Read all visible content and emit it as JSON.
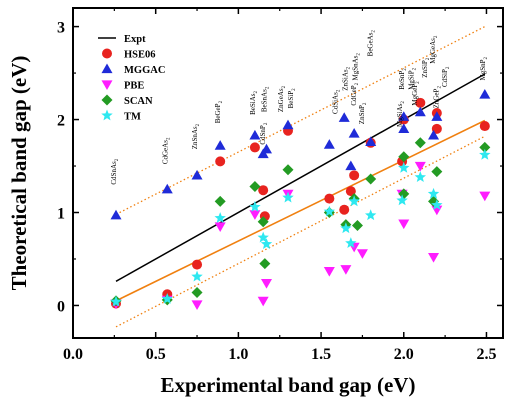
{
  "chart_data": {
    "type": "scatter",
    "title": "",
    "xlabel": "Experimental band gap (eV)",
    "ylabel": "Theoretical band gap (eV)",
    "xlim": [
      0.0,
      2.6
    ],
    "ylim": [
      -0.35,
      3.2
    ],
    "xticks": [
      "0.0",
      "0.5",
      "1.0",
      "1.5",
      "2.0",
      "2.5"
    ],
    "yticks": [
      "0",
      "1",
      "2",
      "3"
    ],
    "legend_position": "top-left",
    "grid": false,
    "series": [
      {
        "name": "Expt",
        "marker": "line",
        "color": "#000000",
        "x": [
          0.26,
          2.49
        ],
        "y": [
          0.26,
          2.49
        ]
      },
      {
        "name": "HSE06",
        "marker": "circle",
        "color": "#e8231f",
        "x": [
          0.26,
          0.57,
          0.75,
          0.89,
          1.1,
          1.15,
          1.16,
          1.3,
          1.55,
          1.64,
          1.68,
          1.7,
          1.8,
          1.99,
          2.0,
          2.1,
          2.2,
          2.2,
          2.49
        ],
        "y": [
          0.02,
          0.12,
          0.44,
          1.55,
          1.7,
          1.24,
          0.96,
          1.88,
          1.15,
          1.03,
          1.23,
          1.4,
          1.75,
          1.55,
          2.0,
          2.18,
          2.07,
          1.9,
          1.93
        ]
      },
      {
        "name": "MGGAC",
        "marker": "triangle-up",
        "color": "#1f2bd8",
        "x": [
          0.26,
          0.57,
          0.75,
          0.89,
          1.1,
          1.15,
          1.17,
          1.3,
          1.55,
          1.64,
          1.68,
          1.7,
          1.8,
          2.0,
          2.0,
          2.1,
          2.18,
          2.2,
          2.49
        ],
        "y": [
          0.97,
          1.25,
          1.4,
          1.72,
          1.83,
          1.63,
          1.68,
          1.94,
          1.73,
          2.02,
          1.5,
          1.85,
          1.76,
          1.9,
          2.03,
          2.08,
          1.83,
          2.03,
          2.27
        ]
      },
      {
        "name": "PBE",
        "marker": "triangle-down",
        "color": "#ff1cff",
        "x": [
          0.26,
          0.57,
          0.75,
          0.89,
          1.1,
          1.15,
          1.17,
          1.3,
          1.55,
          1.65,
          1.7,
          1.75,
          1.99,
          2.0,
          2.1,
          2.18,
          2.2,
          2.49
        ],
        "y": [
          0.02,
          0.06,
          0.01,
          0.85,
          0.98,
          0.05,
          0.24,
          1.2,
          0.37,
          0.39,
          0.63,
          0.56,
          1.2,
          0.88,
          1.5,
          0.52,
          1.03,
          1.18
        ]
      },
      {
        "name": "SCAN",
        "marker": "diamond",
        "color": "#239b23",
        "x": [
          0.26,
          0.57,
          0.75,
          0.89,
          1.1,
          1.15,
          1.16,
          1.3,
          1.55,
          1.65,
          1.7,
          1.72,
          1.8,
          2.0,
          2.0,
          2.1,
          2.18,
          2.2,
          2.49
        ],
        "y": [
          0.05,
          0.06,
          0.14,
          1.12,
          1.28,
          0.9,
          0.45,
          1.46,
          1.0,
          0.87,
          1.15,
          0.86,
          1.36,
          1.2,
          1.6,
          1.75,
          1.12,
          1.44,
          1.7
        ]
      },
      {
        "name": "TM",
        "marker": "star",
        "color": "#2ee8f0",
        "x": [
          0.26,
          0.57,
          0.75,
          0.89,
          1.1,
          1.15,
          1.17,
          1.3,
          1.55,
          1.65,
          1.68,
          1.7,
          1.8,
          1.99,
          2.0,
          2.1,
          2.18,
          2.2,
          2.49
        ],
        "y": [
          0.04,
          0.07,
          0.31,
          0.94,
          1.06,
          0.73,
          0.66,
          1.16,
          1.01,
          0.83,
          0.67,
          1.12,
          0.97,
          1.13,
          1.48,
          1.38,
          1.2,
          1.08,
          1.62
        ]
      }
    ],
    "fit_lines": [
      {
        "color": "#f08010",
        "style": "dotted",
        "x": [
          0.26,
          2.49
        ],
        "y": [
          0.98,
          3.0
        ]
      },
      {
        "color": "#f08010",
        "style": "solid",
        "x": [
          0.26,
          2.49
        ],
        "y": [
          0.05,
          1.99
        ]
      },
      {
        "color": "#f08010",
        "style": "dotted",
        "x": [
          0.26,
          2.49
        ],
        "y": [
          -0.23,
          1.82
        ]
      }
    ],
    "compound_labels": [
      {
        "text": "CdSnAs2",
        "x": 0.26,
        "y": 1.3
      },
      {
        "text": "CdGeAs2",
        "x": 0.57,
        "y": 1.52
      },
      {
        "text": "ZnSnAs2",
        "x": 0.75,
        "y": 1.68
      },
      {
        "text": "BeGeP2",
        "x": 0.89,
        "y": 1.96
      },
      {
        "text": "BeSiAs2",
        "x": 1.1,
        "y": 2.05
      },
      {
        "text": "BeSnAs2",
        "x": 1.17,
        "y": 2.08
      },
      {
        "text": "ZnGeAs2",
        "x": 1.27,
        "y": 2.08
      },
      {
        "text": "CdSnP2",
        "x": 1.16,
        "y": 1.73
      },
      {
        "text": "BeSiP2",
        "x": 1.33,
        "y": 2.12
      },
      {
        "text": "CdSiAs2",
        "x": 1.6,
        "y": 2.06
      },
      {
        "text": "ZnSiAs2",
        "x": 1.66,
        "y": 2.31
      },
      {
        "text": "MgSnAs2",
        "x": 1.72,
        "y": 2.42
      },
      {
        "text": "BeGeAs2",
        "x": 1.81,
        "y": 2.68
      },
      {
        "text": "CdGeP2",
        "x": 1.71,
        "y": 2.15
      },
      {
        "text": "ZnSnP2",
        "x": 1.76,
        "y": 1.95
      },
      {
        "text": "MgSiAs2",
        "x": 1.99,
        "y": 1.92
      },
      {
        "text": "BeSnP2",
        "x": 2.0,
        "y": 2.32
      },
      {
        "text": "MgSiP2",
        "x": 2.06,
        "y": 2.32
      },
      {
        "text": "ZnSiP2",
        "x": 2.14,
        "y": 2.45
      },
      {
        "text": "MgGeP2",
        "x": 2.08,
        "y": 2.15
      },
      {
        "text": "MgGeAs2",
        "x": 2.19,
        "y": 2.6
      },
      {
        "text": "ZnGeP2",
        "x": 2.21,
        "y": 2.12
      },
      {
        "text": "CdSiP2",
        "x": 2.26,
        "y": 2.35
      },
      {
        "text": "MgSnP2",
        "x": 2.49,
        "y": 2.42
      }
    ]
  }
}
